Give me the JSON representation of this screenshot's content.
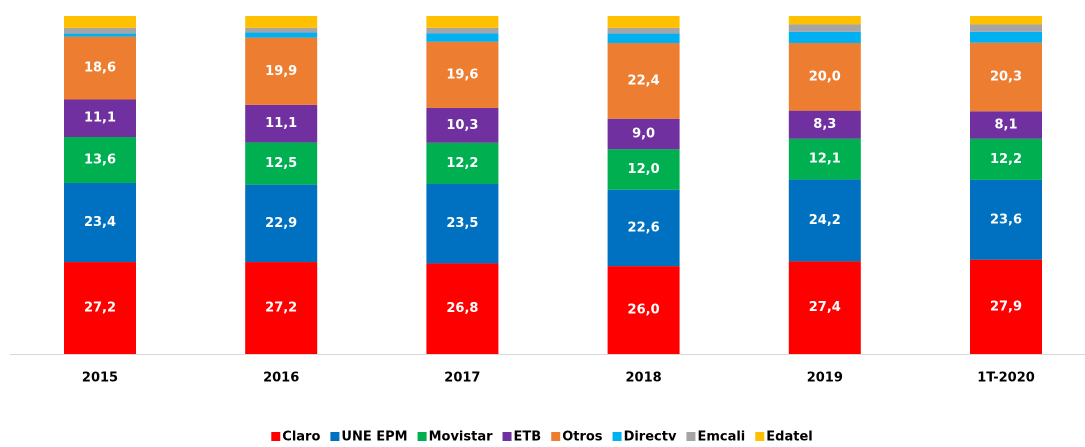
{
  "chart_data": {
    "type": "stacked_bar",
    "categories": [
      "2015",
      "2016",
      "2017",
      "2018",
      "2019",
      "1T-2020"
    ],
    "ylim": [
      0,
      100
    ],
    "series": [
      {
        "name": "Claro",
        "color": "#ff0000",
        "values": [
          27.2,
          27.2,
          26.8,
          26.0,
          27.4,
          27.9
        ],
        "value_labels": [
          "27,2",
          "27,2",
          "26,8",
          "26,0",
          "27,4",
          "27,9"
        ]
      },
      {
        "name": "UNE EPM",
        "color": "#0070c0",
        "values": [
          23.4,
          22.9,
          23.5,
          22.6,
          24.2,
          23.6
        ],
        "value_labels": [
          "23,4",
          "22,9",
          "23,5",
          "22,6",
          "24,2",
          "23,6"
        ]
      },
      {
        "name": "Movistar",
        "color": "#00b050",
        "values": [
          13.6,
          12.5,
          12.2,
          12.0,
          12.1,
          12.2
        ],
        "value_labels": [
          "13,6",
          "12,5",
          "12,2",
          "12,0",
          "12,1",
          "12,2"
        ]
      },
      {
        "name": "ETB",
        "color": "#7030a0",
        "values": [
          11.1,
          11.1,
          10.3,
          9.0,
          8.3,
          8.1
        ],
        "value_labels": [
          "11,1",
          "11,1",
          "10,3",
          "9,0",
          "8,3",
          "8,1"
        ]
      },
      {
        "name": "Otros",
        "color": "#ed7d31",
        "values": [
          18.6,
          19.9,
          19.6,
          22.4,
          20.0,
          20.3
        ],
        "value_labels": [
          "18,6",
          "19,9",
          "19,6",
          "22,4",
          "20,0",
          "20,3"
        ]
      },
      {
        "name": "Directv",
        "color": "#00b0f0",
        "values": [
          0.9,
          1.5,
          2.5,
          2.8,
          3.3,
          3.2
        ]
      },
      {
        "name": "Emcali",
        "color": "#a5a5a5",
        "values": [
          1.7,
          1.4,
          1.6,
          1.7,
          2.2,
          2.2
        ]
      },
      {
        "name": "Edatel",
        "color": "#ffc000",
        "values": [
          3.5,
          3.5,
          3.5,
          3.5,
          2.5,
          2.5
        ]
      }
    ]
  }
}
